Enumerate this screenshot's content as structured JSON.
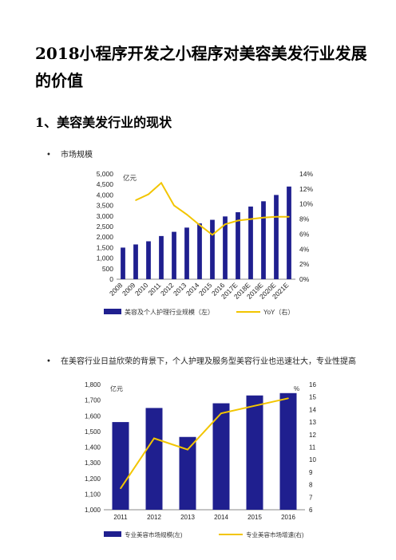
{
  "document": {
    "title": "2018小程序开发之小程序对美容美发行业发展的价值",
    "section_heading": "1、美容美发行业的现状",
    "bullets": [
      "市场规模",
      "在美容行业日益欣荣的背景下，个人护理及服务型美容行业也迅速壮大，专业性提高"
    ]
  },
  "chart_data": [
    {
      "type": "bar",
      "categories": [
        "2008",
        "2009",
        "2010",
        "2011",
        "2012",
        "2013",
        "2014",
        "2015",
        "2016",
        "2017E",
        "2018E",
        "2019E",
        "2020E",
        "2021E"
      ],
      "unit_label": "亿元",
      "ylim": [
        0,
        5000
      ],
      "yticks": [
        "5,000",
        "4,500",
        "4,000",
        "3,500",
        "3,000",
        "2,500",
        "2,000",
        "1,500",
        "1,000",
        "500",
        "0"
      ],
      "y2lim": [
        0,
        14
      ],
      "y2ticks": [
        "14%",
        "12%",
        "10%",
        "8%",
        "6%",
        "4%",
        "2%",
        "0%"
      ],
      "series": [
        {
          "name": "美容及个人护理行业规模（左）",
          "type": "bar",
          "color": "#1f1f8f",
          "values": [
            1500,
            1650,
            1800,
            2050,
            2250,
            2450,
            2650,
            2820,
            2980,
            3180,
            3450,
            3700,
            4000,
            4400
          ]
        },
        {
          "name": "YoY（右）",
          "type": "line",
          "axis": "right",
          "color": "#f2c500",
          "values": [
            null,
            10.5,
            11.3,
            12.8,
            9.8,
            8.6,
            7.2,
            5.9,
            7.3,
            7.8,
            8.0,
            8.2,
            8.3,
            8.3
          ]
        }
      ],
      "legend_position": "bottom"
    },
    {
      "type": "bar",
      "categories": [
        "2011",
        "2012",
        "2013",
        "2014",
        "2015",
        "2016"
      ],
      "unit_label": "亿元",
      "unit_label_right": "%",
      "ylim": [
        1000,
        1800
      ],
      "yticks": [
        "1,800",
        "1,700",
        "1,600",
        "1,500",
        "1,400",
        "1,300",
        "1,200",
        "1,100",
        "1,000"
      ],
      "y2lim": [
        6,
        16
      ],
      "y2ticks": [
        "16",
        "15",
        "14",
        "13",
        "12",
        "11",
        "10",
        "9",
        "8",
        "7",
        "6"
      ],
      "series": [
        {
          "name": "专业美容市场规模(左)",
          "type": "bar",
          "color": "#1f1f8f",
          "values": [
            1560,
            1650,
            1465,
            1680,
            1730,
            1745
          ]
        },
        {
          "name": "专业美容市场增速(右)",
          "type": "line",
          "axis": "right",
          "color": "#f2c500",
          "values": [
            7.7,
            11.7,
            10.8,
            13.7,
            14.3,
            14.9
          ]
        }
      ],
      "legend_position": "bottom"
    }
  ]
}
